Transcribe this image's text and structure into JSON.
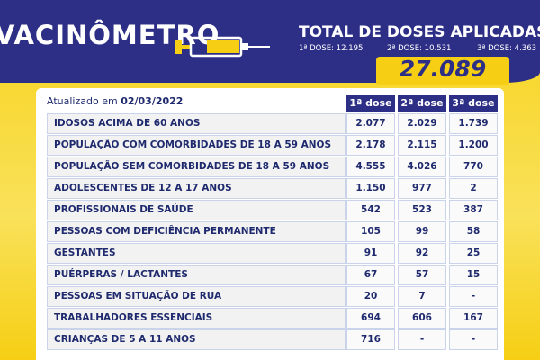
{
  "header": {
    "logo": "VACINÔMETRO",
    "total_title": "TOTAL DE DOSES APLICADAS",
    "doses": [
      "1ª DOSE: 12.195",
      "2ª DOSE: 10.531",
      "3ª DOSE: 4.363"
    ],
    "total": "27.089"
  },
  "table": {
    "updated_label": "Atualizado em",
    "updated_date": "02/03/2022",
    "columns": [
      "1ª dose",
      "2ª dose",
      "3ª dose"
    ],
    "rows": [
      {
        "label": "IDOSOS ACIMA DE 60 ANOS",
        "values": [
          "2.077",
          "2.029",
          "1.739"
        ]
      },
      {
        "label": "POPULAÇÃO COM COMORBIDADES DE 18 A 59 ANOS",
        "values": [
          "2.178",
          "2.115",
          "1.200"
        ]
      },
      {
        "label": "POPULAÇÃO SEM COMORBIDADES DE 18 A 59 ANOS",
        "values": [
          "4.555",
          "4.026",
          "770"
        ]
      },
      {
        "label": "ADOLESCENTES DE 12 A 17 ANOS",
        "values": [
          "1.150",
          "977",
          "2"
        ]
      },
      {
        "label": "PROFISSIONAIS DE SAÚDE",
        "values": [
          "542",
          "523",
          "387"
        ]
      },
      {
        "label": "PESSOAS COM DEFICIÊNCIA PERMANENTE",
        "values": [
          "105",
          "99",
          "58"
        ]
      },
      {
        "label": "GESTANTES",
        "values": [
          "91",
          "92",
          "25"
        ]
      },
      {
        "label": "PUÉRPERAS / LACTANTES",
        "values": [
          "67",
          "57",
          "15"
        ]
      },
      {
        "label": "PESSOAS EM SITUAÇÃO DE RUA",
        "values": [
          "20",
          "7",
          "-"
        ]
      },
      {
        "label": "TRABALHADORES ESSENCIAIS",
        "values": [
          "694",
          "606",
          "167"
        ]
      },
      {
        "label": "CRIANÇAS DE 5 A 11 ANOS",
        "values": [
          "716",
          "-",
          "-"
        ]
      }
    ]
  }
}
